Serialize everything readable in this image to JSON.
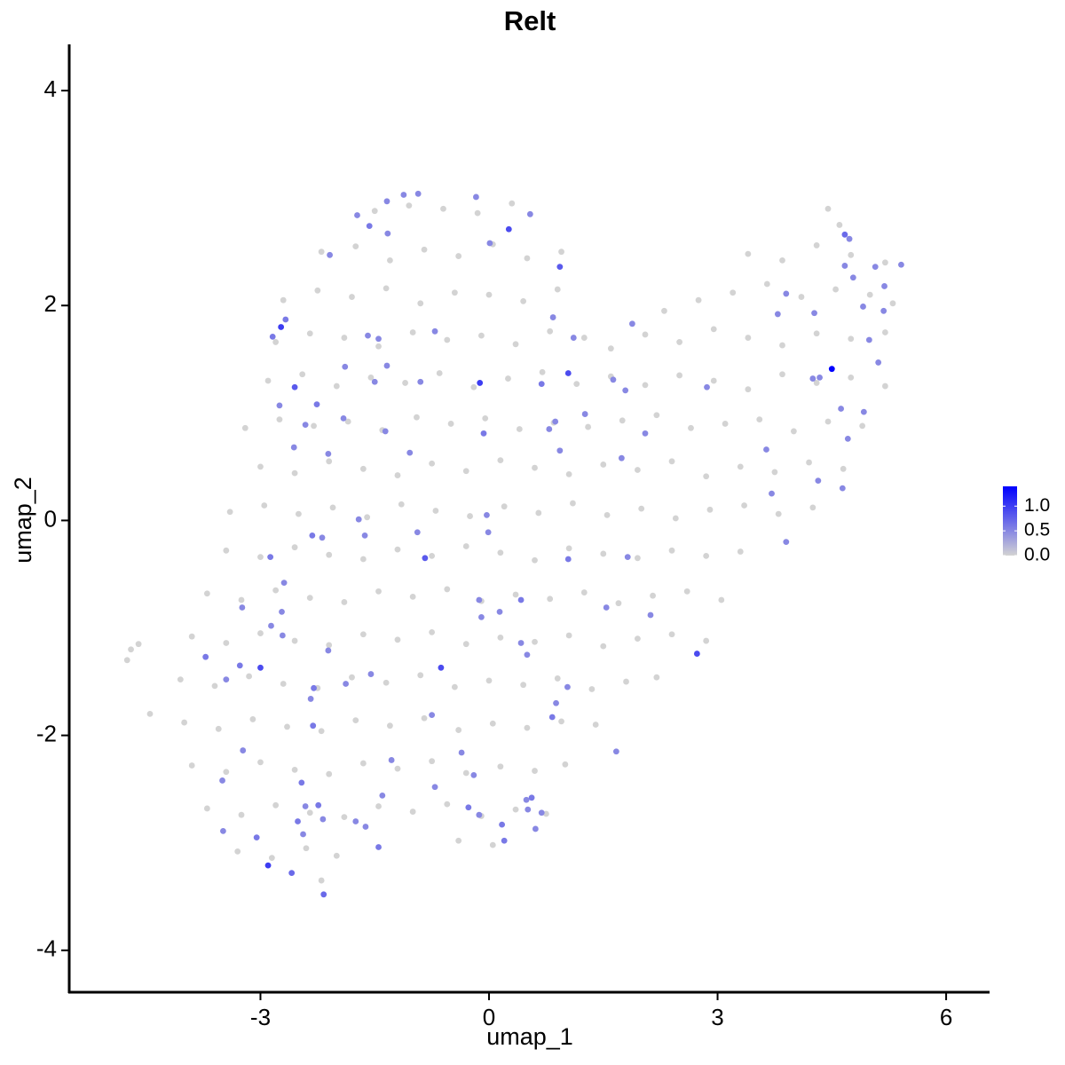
{
  "chart_data": {
    "type": "scatter",
    "title": "Relt",
    "x_label": "umap_1",
    "y_label": "umap_2",
    "xlim": [
      -5.51,
      6.57
    ],
    "ylim": [
      -4.39,
      4.43
    ],
    "xticks": [
      -3,
      0,
      3,
      6
    ],
    "yticks": [
      -4,
      -2,
      0,
      2,
      4
    ],
    "color_low": "#d3d3d3",
    "color_high": "#0000ff",
    "color_lim": [
      0,
      1.4
    ],
    "colorbar_ticks": [
      {
        "value": 0,
        "label": "0.0"
      },
      {
        "value": 0.5,
        "label": "0.5"
      },
      {
        "value": 1,
        "label": "1.0"
      }
    ],
    "x": [
      -1.5,
      -1.05,
      -0.6,
      -0.15,
      0.3,
      4.45,
      4.6,
      -2.2,
      -1.75,
      -1.3,
      -0.85,
      -0.4,
      0.05,
      0.5,
      0.95,
      3.4,
      3.85,
      4.3,
      4.75,
      5.2,
      -2.7,
      -2.25,
      -1.8,
      -1.35,
      -0.9,
      -0.45,
      0,
      0.45,
      0.9,
      2.3,
      2.75,
      3.2,
      3.65,
      4.1,
      4.55,
      5.0,
      5.3,
      -2.8,
      -2.35,
      -1.9,
      -1.45,
      -1.0,
      -0.55,
      -0.1,
      0.35,
      0.8,
      1.25,
      1.6,
      2.05,
      2.5,
      2.95,
      3.4,
      3.85,
      4.3,
      4.75,
      5.2,
      -2.9,
      -2.45,
      -2,
      -1.55,
      -1.1,
      -0.65,
      -0.2,
      0.25,
      0.7,
      1.15,
      1.6,
      2.05,
      2.5,
      2.95,
      3.4,
      3.85,
      4.3,
      4.75,
      5.2,
      -3.2,
      -2.75,
      -2.3,
      -1.85,
      -1.4,
      -0.95,
      -0.5,
      -0.05,
      0.4,
      0.85,
      1.3,
      1.75,
      2.2,
      2.65,
      3.1,
      3.55,
      4.0,
      4.45,
      4.9,
      -3.0,
      -2.55,
      -2.1,
      -1.65,
      -1.2,
      -0.75,
      -0.3,
      0.15,
      0.6,
      1.05,
      1.5,
      1.95,
      2.4,
      2.85,
      3.3,
      3.75,
      4.2,
      4.65,
      -3.4,
      -2.95,
      -2.5,
      -2.05,
      -1.6,
      -1.15,
      -0.7,
      -0.25,
      0.2,
      0.65,
      1.1,
      1.55,
      2.0,
      2.45,
      2.9,
      3.35,
      3.8,
      4.25,
      -3.45,
      -3.0,
      -2.55,
      -2.1,
      -1.65,
      -1.2,
      -0.75,
      -0.3,
      0.15,
      0.6,
      1.05,
      1.5,
      1.95,
      2.4,
      2.85,
      3.3,
      -3.7,
      -3.25,
      -2.8,
      -2.35,
      -1.9,
      -1.45,
      -1.0,
      -0.55,
      -0.1,
      0.35,
      0.8,
      1.25,
      1.7,
      2.15,
      2.6,
      3.05,
      -3.9,
      -3.45,
      -3.0,
      -2.55,
      -2.1,
      -1.65,
      -1.2,
      -0.75,
      -0.3,
      0.15,
      0.6,
      1.05,
      1.5,
      1.95,
      2.4,
      2.85,
      -4.05,
      -3.6,
      -3.15,
      -2.7,
      -2.25,
      -1.8,
      -1.35,
      -0.9,
      -0.45,
      0,
      0.45,
      0.9,
      1.35,
      1.8,
      2.2,
      -4.0,
      -3.55,
      -3.1,
      -2.65,
      -2.2,
      -1.75,
      -1.3,
      -0.85,
      -0.4,
      0.05,
      0.5,
      0.95,
      1.4,
      -3.9,
      -3.45,
      -3.0,
      -2.55,
      -2.1,
      -1.65,
      -1.2,
      -0.75,
      -0.3,
      0.15,
      0.6,
      1.0,
      -3.7,
      -3.25,
      -2.8,
      -2.35,
      -1.9,
      -1.45,
      -1.0,
      -0.55,
      -0.1,
      0.35,
      0.75,
      -3.3,
      -2.85,
      -2.4,
      -2.0,
      -0.4,
      0.05,
      -4.7,
      -4.6,
      -4.45,
      -2.2,
      -4.75,
      -2.73,
      -2.67,
      -2.84,
      -2.55,
      -2.75,
      -2.26,
      -2.09,
      -1.73,
      -1.57,
      -1.34,
      -1.33,
      -1.12,
      -0.93,
      -0.17,
      0.26,
      0.54,
      0.93,
      0.01,
      0.84,
      1.11,
      1.04,
      0.69,
      -0.12,
      -0.07,
      -0.71,
      -1.59,
      -1.45,
      -1.89,
      -1.5,
      -1.34,
      -0.9,
      -1.36,
      -1.04,
      -1.91,
      -2.11,
      -2.41,
      -2.56,
      -1.71,
      -2.32,
      -2.19,
      -1.63,
      -2.87,
      -2.69,
      -3.24,
      -2.72,
      -2.86,
      -2.71,
      -3.0,
      -3.27,
      -3.45,
      -3.72,
      -2.11,
      -2.34,
      -1.88,
      -1.55,
      -2.3,
      -2.31,
      -3.23,
      -3.5,
      -2.46,
      -2.41,
      -2.24,
      -2.51,
      -2.44,
      -2.18,
      -3.05,
      -2.9,
      -2.59,
      -2.17,
      -3.49,
      -1.75,
      -1.62,
      -1.45,
      -1.4,
      -1.28,
      -0.71,
      -0.63,
      -0.75,
      -0.36,
      -0.2,
      -0.27,
      -0.13,
      0.17,
      0.2,
      0.49,
      0.56,
      0.51,
      0.69,
      0.61,
      1.03,
      0.88,
      0.83,
      0.42,
      0.5,
      0.42,
      0.14,
      -0.1,
      -0.13,
      -0.84,
      -0.94,
      -0.03,
      -0.01,
      1.04,
      1.82,
      1.54,
      2.12,
      2.73,
      1.67,
      1.74,
      2.05,
      1.26,
      0.93,
      0.79,
      0.87,
      1.63,
      1.79,
      1.88,
      2.86,
      3.71,
      3.64,
      3.9,
      3.79,
      3.9,
      4.27,
      4.25,
      4.34,
      4.5,
      4.62,
      4.92,
      4.71,
      4.32,
      4.64,
      4.67,
      4.73,
      4.78,
      4.67,
      4.91,
      5.07,
      5.19,
      5.41,
      5.18,
      5.11,
      4.99
    ],
    "y": [
      2.88,
      2.93,
      2.9,
      2.86,
      2.95,
      2.9,
      2.75,
      2.5,
      2.55,
      2.42,
      2.52,
      2.46,
      2.57,
      2.44,
      2.5,
      2.48,
      2.42,
      2.56,
      2.47,
      2.4,
      2.05,
      2.14,
      2.08,
      2.16,
      2.02,
      2.12,
      2.1,
      2.04,
      2.15,
      1.95,
      2.05,
      2.12,
      2.2,
      2.08,
      2.15,
      2.1,
      2.02,
      1.66,
      1.74,
      1.7,
      1.62,
      1.75,
      1.68,
      1.72,
      1.64,
      1.76,
      1.7,
      1.6,
      1.73,
      1.66,
      1.78,
      1.7,
      1.63,
      1.74,
      1.69,
      1.75,
      1.3,
      1.36,
      1.25,
      1.33,
      1.28,
      1.37,
      1.24,
      1.32,
      1.38,
      1.27,
      1.34,
      1.26,
      1.35,
      1.3,
      1.22,
      1.36,
      1.28,
      1.33,
      1.25,
      0.86,
      0.94,
      0.88,
      0.92,
      0.84,
      0.96,
      0.9,
      0.95,
      0.85,
      0.91,
      0.87,
      0.93,
      0.98,
      0.86,
      0.9,
      0.94,
      0.83,
      0.92,
      0.88,
      0.5,
      0.44,
      0.55,
      0.48,
      0.42,
      0.53,
      0.46,
      0.56,
      0.49,
      0.43,
      0.52,
      0.47,
      0.55,
      0.41,
      0.5,
      0.45,
      0.54,
      0.48,
      0.08,
      0.14,
      0.06,
      0.12,
      0.03,
      0.15,
      0.09,
      0.04,
      0.13,
      0.07,
      0.16,
      0.05,
      0.11,
      0.02,
      0.1,
      0.14,
      0.06,
      0.12,
      -0.28,
      -0.34,
      -0.25,
      -0.32,
      -0.36,
      -0.27,
      -0.33,
      -0.24,
      -0.3,
      -0.37,
      -0.26,
      -0.31,
      -0.35,
      -0.28,
      -0.33,
      -0.29,
      -0.68,
      -0.74,
      -0.65,
      -0.72,
      -0.76,
      -0.66,
      -0.71,
      -0.64,
      -0.75,
      -0.69,
      -0.73,
      -0.67,
      -0.77,
      -0.7,
      -0.66,
      -0.74,
      -1.08,
      -1.14,
      -1.05,
      -1.12,
      -1.16,
      -1.06,
      -1.11,
      -1.04,
      -1.15,
      -1.09,
      -1.13,
      -1.07,
      -1.17,
      -1.1,
      -1.06,
      -1.12,
      -1.48,
      -1.54,
      -1.45,
      -1.52,
      -1.56,
      -1.46,
      -1.51,
      -1.44,
      -1.55,
      -1.49,
      -1.53,
      -1.47,
      -1.57,
      -1.5,
      -1.46,
      -1.88,
      -1.94,
      -1.85,
      -1.92,
      -1.96,
      -1.86,
      -1.91,
      -1.84,
      -1.95,
      -1.89,
      -1.93,
      -1.87,
      -1.9,
      -2.28,
      -2.34,
      -2.25,
      -2.32,
      -2.36,
      -2.26,
      -2.31,
      -2.24,
      -2.35,
      -2.29,
      -2.33,
      -2.27,
      -2.68,
      -2.74,
      -2.65,
      -2.72,
      -2.76,
      -2.66,
      -2.71,
      -2.64,
      -2.75,
      -2.69,
      -2.73,
      -3.08,
      -3.14,
      -3.05,
      -3.12,
      -2.98,
      -3.02,
      -1.2,
      -1.15,
      -1.8,
      -3.35,
      -1.3,
      1.8,
      1.87,
      1.71,
      1.24,
      1.07,
      1.08,
      2.47,
      2.84,
      2.74,
      2.97,
      2.67,
      3.03,
      3.04,
      3.01,
      2.71,
      2.85,
      2.36,
      2.58,
      1.89,
      1.7,
      1.37,
      1.27,
      1.28,
      0.81,
      1.76,
      1.72,
      1.69,
      1.43,
      1.29,
      1.44,
      1.29,
      0.83,
      0.63,
      0.95,
      0.62,
      0.89,
      0.68,
      0.01,
      -0.14,
      -0.16,
      -0.14,
      -0.34,
      -0.58,
      -0.81,
      -0.85,
      -0.98,
      -1.07,
      -1.37,
      -1.35,
      -1.48,
      -1.27,
      -1.21,
      -1.66,
      -1.52,
      -1.43,
      -1.56,
      -1.91,
      -2.14,
      -2.42,
      -2.44,
      -2.66,
      -2.65,
      -2.8,
      -2.92,
      -2.78,
      -2.95,
      -3.21,
      -3.28,
      -3.48,
      -2.89,
      -2.8,
      -2.85,
      -3.04,
      -2.56,
      -2.23,
      -2.48,
      -1.37,
      -1.81,
      -2.16,
      -2.37,
      -2.67,
      -2.74,
      -2.83,
      -2.98,
      -2.6,
      -2.58,
      -2.69,
      -2.72,
      -2.87,
      -1.55,
      -1.7,
      -1.83,
      -1.14,
      -1.25,
      -0.74,
      -0.85,
      -0.9,
      -0.74,
      -0.35,
      -0.11,
      0.05,
      -0.11,
      -0.36,
      -0.34,
      -0.81,
      -0.88,
      -1.24,
      -2.15,
      0.58,
      0.81,
      0.99,
      0.65,
      0.85,
      0.92,
      1.31,
      1.21,
      1.83,
      1.24,
      0.25,
      0.66,
      -0.2,
      1.92,
      2.11,
      1.93,
      1.32,
      1.33,
      1.41,
      1.04,
      1.01,
      0.76,
      0.37,
      0.3,
      2.66,
      2.62,
      2.26,
      2.37,
      1.99,
      2.36,
      2.18,
      2.38,
      1.95,
      1.47,
      1.68
    ],
    "values": [
      0,
      0,
      0,
      0,
      0,
      0,
      0,
      0,
      0,
      0,
      0,
      0,
      0,
      0,
      0,
      0,
      0,
      0,
      0,
      0,
      0,
      0,
      0,
      0,
      0,
      0,
      0,
      0,
      0,
      0,
      0,
      0,
      0,
      0,
      0,
      0,
      0,
      0,
      0,
      0,
      0,
      0,
      0,
      0,
      0,
      0,
      0,
      0,
      0,
      0,
      0,
      0,
      0,
      0,
      0,
      0,
      0,
      0,
      0,
      0,
      0,
      0,
      0,
      0,
      0,
      0,
      0,
      0,
      0,
      0,
      0,
      0,
      0,
      0,
      0,
      0,
      0,
      0,
      0,
      0,
      0,
      0,
      0,
      0,
      0,
      0,
      0,
      0,
      0,
      0,
      0,
      0,
      0,
      0,
      0,
      0,
      0,
      0,
      0,
      0,
      0,
      0,
      0,
      0,
      0,
      0,
      0,
      0,
      0,
      0,
      0,
      0,
      0,
      0,
      0,
      0,
      0,
      0,
      0,
      0,
      0,
      0,
      0,
      0,
      0,
      0,
      0,
      0,
      0,
      0,
      0,
      0,
      0,
      0,
      0,
      0,
      0,
      0,
      0,
      0,
      0,
      0,
      0,
      0,
      0,
      0,
      0,
      0,
      0,
      0,
      0,
      0,
      0,
      0,
      0,
      0,
      0,
      0,
      0,
      0,
      0,
      0,
      0,
      0,
      0,
      0,
      0,
      0,
      0,
      0,
      0,
      0,
      0,
      0,
      0,
      0,
      0,
      0,
      0,
      0,
      0,
      0,
      0,
      0,
      0,
      0,
      0,
      0,
      0,
      0,
      0,
      0,
      0,
      0,
      0,
      0,
      0,
      0,
      0,
      0,
      0,
      0,
      0,
      0,
      0,
      0,
      0,
      0,
      0,
      0,
      0,
      0,
      0,
      0,
      0,
      0,
      0,
      0,
      0,
      0,
      0,
      0,
      0,
      0,
      0,
      0,
      0,
      0,
      0,
      0,
      0,
      0,
      0,
      0,
      0,
      0,
      0,
      0,
      0,
      0,
      1.0,
      0.6,
      0.6,
      0.8,
      0.5,
      0.6,
      0.5,
      0.5,
      0.6,
      0.5,
      0.5,
      0.5,
      0.5,
      0.5,
      0.9,
      0.5,
      0.8,
      0.5,
      0.5,
      0.5,
      0.9,
      0.6,
      1.0,
      0.6,
      0.5,
      0.5,
      0.5,
      0.5,
      0.5,
      0.5,
      0.5,
      0.5,
      0.5,
      0.5,
      0.5,
      0.5,
      0.5,
      0.5,
      0.6,
      0.5,
      0.5,
      0.6,
      0.5,
      0.5,
      0.5,
      0.5,
      0.5,
      0.9,
      0.6,
      0.5,
      0.6,
      0.5,
      0.5,
      0.5,
      0.5,
      0.6,
      0.6,
      0.5,
      0.5,
      0.6,
      0.5,
      0.6,
      0.6,
      0.5,
      0.5,
      0.6,
      1.0,
      0.7,
      0.7,
      0.5,
      0.5,
      0.5,
      0.6,
      0.5,
      0.5,
      0.5,
      0.9,
      0.5,
      0.5,
      0.5,
      0.6,
      0.5,
      0.6,
      0.6,
      0.5,
      0.6,
      0.5,
      0.5,
      0.5,
      0.5,
      0.5,
      0.6,
      0.5,
      0.5,
      0.6,
      0.5,
      0.5,
      0.5,
      0.8,
      0.5,
      0.5,
      0.5,
      0.6,
      0.5,
      0.5,
      0.5,
      0.9,
      0.5,
      0.5,
      0.5,
      0.5,
      0.5,
      0.5,
      0.5,
      0.5,
      0.5,
      0.5,
      0.5,
      0.5,
      0.5,
      0.5,
      0.5,
      0.5,
      0.5,
      0.5,
      0.5,
      1.4,
      0.5,
      0.5,
      0.5,
      0.5,
      0.5,
      0.7,
      0.5,
      0.5,
      0.5,
      0.5,
      0.5,
      0.5,
      0.5,
      0.5,
      0.5,
      0.5
    ]
  }
}
